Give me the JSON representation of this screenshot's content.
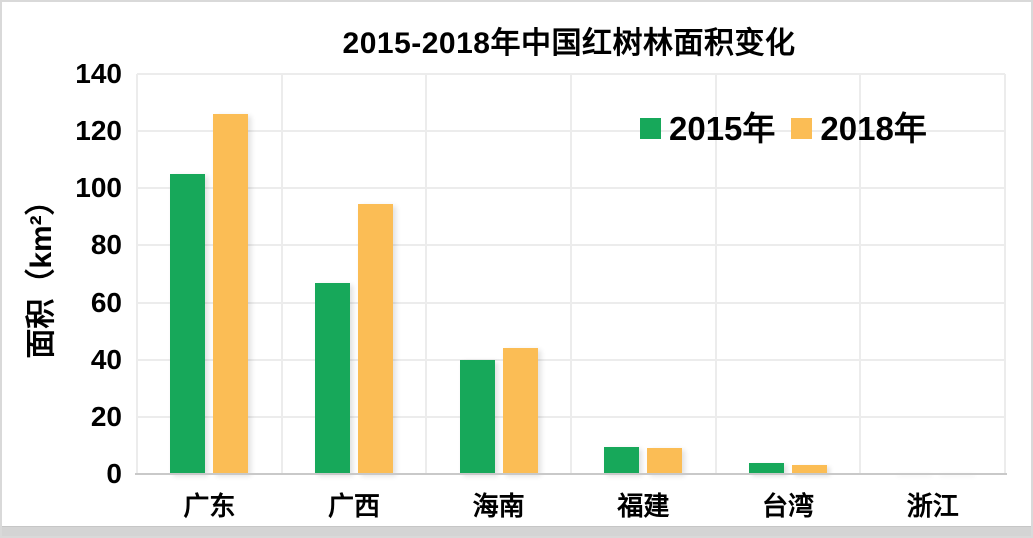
{
  "chart_data": {
    "type": "bar",
    "title": "2015-2018年中国红树林面积变化",
    "xlabel": "",
    "ylabel": "面积（km²）",
    "categories": [
      "广东",
      "广西",
      "海南",
      "福建",
      "台湾",
      "浙江"
    ],
    "series": [
      {
        "name": "2015年",
        "color": "#17A85A",
        "values": [
          105,
          67,
          40,
          9.5,
          3.7,
          0.2
        ]
      },
      {
        "name": "2018年",
        "color": "#FBBD55",
        "values": [
          126,
          94.5,
          44,
          9,
          3,
          0.5
        ]
      }
    ],
    "ylim": [
      0,
      140
    ],
    "yticks": [
      0,
      20,
      40,
      60,
      80,
      100,
      120,
      140
    ],
    "grid": "horizontal and vertical light-gray major gridlines",
    "legend_position": "top-right inside plot",
    "colors": {
      "series_2015": "#17A85A",
      "series_2018": "#FBBD55",
      "gridline": "#ececec",
      "axis_line": "#c9c9c9",
      "text": "#000000",
      "frame_border": "#d9d9d9"
    }
  }
}
